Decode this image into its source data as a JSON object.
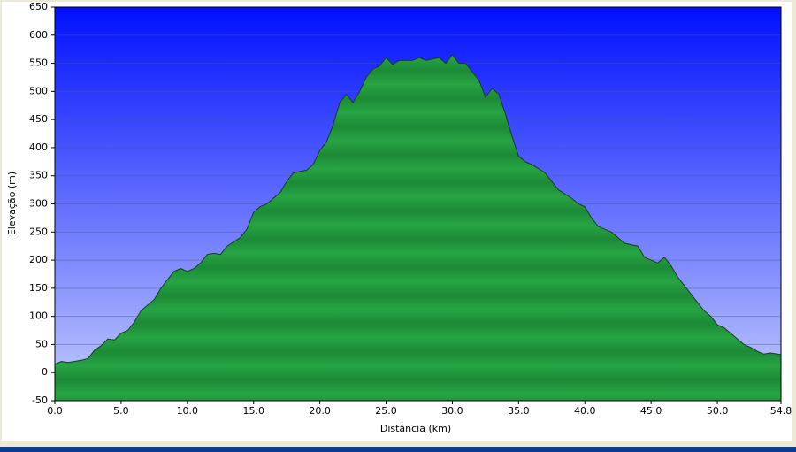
{
  "chart_data": {
    "type": "area",
    "x_label": "Distância   (km)",
    "y_label": "Elevação (m)",
    "x": [
      0,
      0.5,
      1,
      2,
      2.5,
      3,
      3.5,
      4,
      4.5,
      5,
      5.5,
      6,
      6.5,
      7,
      7.5,
      8,
      8.5,
      9,
      9.5,
      10,
      10.5,
      11,
      11.5,
      12,
      12.5,
      13,
      14,
      14.5,
      15,
      15.5,
      16,
      17,
      17.5,
      18,
      19,
      19.5,
      20,
      20.5,
      21,
      21.5,
      22,
      22.5,
      23,
      23.5,
      24,
      24.5,
      25,
      25.5,
      26,
      27,
      27.5,
      28,
      29,
      29.5,
      30,
      30.5,
      31,
      31.5,
      32,
      32.5,
      33,
      33.5,
      34,
      34.5,
      35,
      35.5,
      36,
      37,
      37.5,
      38,
      39,
      39.5,
      40,
      40.5,
      41,
      42,
      42.5,
      43,
      44,
      44.5,
      45,
      45.5,
      46,
      46.5,
      47,
      47.5,
      48,
      48.5,
      49,
      49.5,
      50,
      50.5,
      51,
      51.5,
      52,
      52.5,
      53,
      53.5,
      54,
      54.8
    ],
    "y": [
      15,
      20,
      18,
      22,
      25,
      40,
      48,
      60,
      58,
      70,
      75,
      90,
      110,
      120,
      130,
      150,
      165,
      180,
      185,
      180,
      185,
      195,
      210,
      212,
      210,
      225,
      240,
      255,
      285,
      295,
      300,
      320,
      340,
      355,
      360,
      370,
      395,
      410,
      440,
      480,
      495,
      480,
      500,
      525,
      540,
      545,
      560,
      548,
      555,
      555,
      560,
      555,
      560,
      550,
      565,
      550,
      550,
      535,
      520,
      490,
      505,
      495,
      460,
      420,
      385,
      375,
      370,
      355,
      340,
      325,
      310,
      300,
      295,
      275,
      260,
      250,
      240,
      230,
      225,
      205,
      200,
      195,
      205,
      190,
      170,
      155,
      140,
      125,
      110,
      100,
      85,
      80,
      70,
      60,
      50,
      45,
      38,
      33,
      35,
      32
    ],
    "color": "#1f9a3a",
    "xlim": [
      0,
      54.8
    ],
    "xticks": [
      {
        "value": 0,
        "label": "0.0"
      },
      {
        "value": 5,
        "label": "5.0"
      },
      {
        "value": 10,
        "label": "10.0"
      },
      {
        "value": 15,
        "label": "15.0"
      },
      {
        "value": 20,
        "label": "20.0"
      },
      {
        "value": 25,
        "label": "25.0"
      },
      {
        "value": 30,
        "label": "30.0"
      },
      {
        "value": 35,
        "label": "35.0"
      },
      {
        "value": 40,
        "label": "40.0"
      },
      {
        "value": 45,
        "label": "45.0"
      },
      {
        "value": 50,
        "label": "50.0"
      },
      {
        "value": 54.8,
        "label": "54.8"
      }
    ],
    "ylim": [
      -50,
      650
    ],
    "yticks": [
      -50,
      0,
      50,
      100,
      150,
      200,
      250,
      300,
      350,
      400,
      450,
      500,
      550,
      600,
      650
    ],
    "grid": true
  }
}
